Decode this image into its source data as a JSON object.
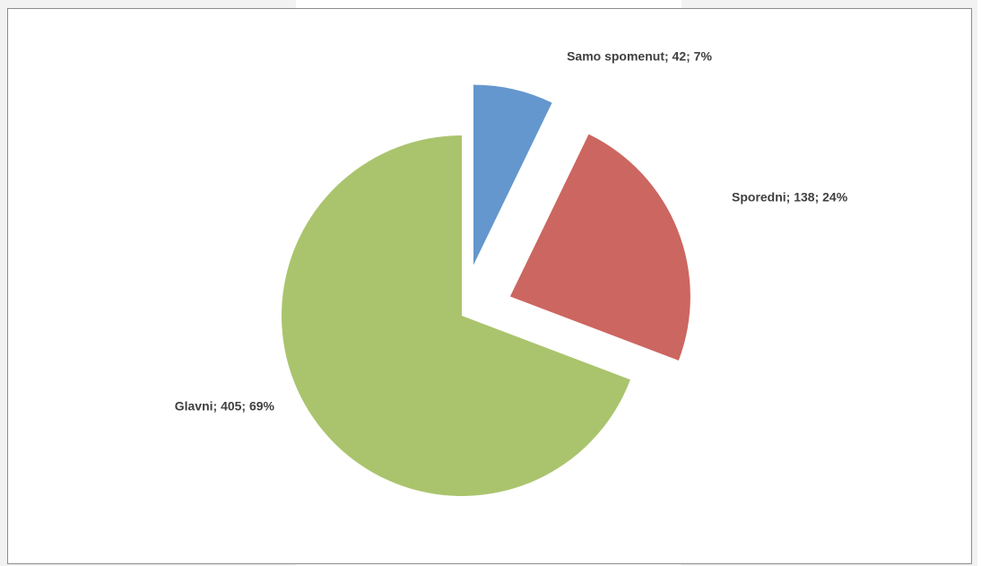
{
  "chart_data": {
    "type": "pie",
    "title": "",
    "slices": [
      {
        "label": "Samo spomenut",
        "value": 42,
        "percent": 7,
        "color": "#6497CD",
        "display": "Samo spomenut; 42; 7%",
        "exploded": true
      },
      {
        "label": "Sporedni",
        "value": 138,
        "percent": 24,
        "color": "#CC6660",
        "display": "Sporedni; 138; 24%",
        "exploded": true
      },
      {
        "label": "Glavni",
        "value": 405,
        "percent": 69,
        "color": "#AAC46D",
        "display": "Glavni; 405; 69%",
        "exploded": false
      }
    ],
    "legend": "none"
  }
}
